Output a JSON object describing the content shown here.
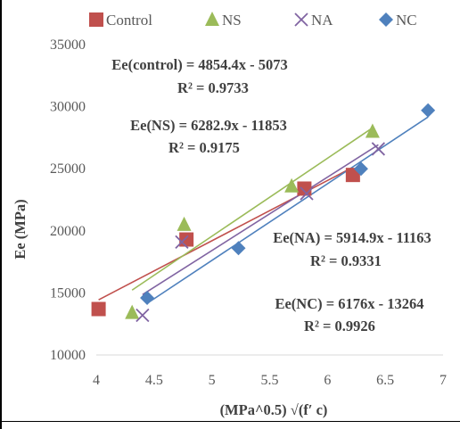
{
  "chart_data": {
    "type": "scatter",
    "xlabel": "(MPa^0.5) √(f′ c)",
    "ylabel": "Ee (MPa)",
    "xlim": [
      4,
      7
    ],
    "ylim": [
      10000,
      35000
    ],
    "x_ticks": [
      "4",
      "4.5",
      "5",
      "5.5",
      "6",
      "6.5",
      "7"
    ],
    "y_ticks": [
      "10000",
      "15000",
      "20000",
      "25000",
      "30000",
      "35000"
    ],
    "grid": false,
    "legend_position": "top",
    "series": [
      {
        "name": "Control",
        "color": "#c0504d",
        "marker": "square",
        "points": [
          [
            4.02,
            13700
          ],
          [
            4.78,
            19300
          ],
          [
            5.8,
            23400
          ],
          [
            6.22,
            24500
          ]
        ],
        "trendline": {
          "slope": 4854.4,
          "intercept": -5073,
          "x_range": [
            4.02,
            6.22
          ]
        },
        "equation": "Ee(control) = 4854.4x - 5073",
        "r2": "R² = 0.9733"
      },
      {
        "name": "NS",
        "color": "#9bbb59",
        "marker": "triangle",
        "points": [
          [
            4.31,
            13400
          ],
          [
            4.76,
            20500
          ],
          [
            5.69,
            23600
          ],
          [
            6.39,
            28000
          ]
        ],
        "trendline": {
          "slope": 6282.9,
          "intercept": -11853,
          "x_range": [
            4.31,
            6.39
          ]
        },
        "equation": "Ee(NS) = 6282.9x - 11853",
        "r2": "R² = 0.9175"
      },
      {
        "name": "NA",
        "color": "#8064a2",
        "marker": "x",
        "points": [
          [
            4.4,
            13200
          ],
          [
            4.74,
            19100
          ],
          [
            5.82,
            23000
          ],
          [
            6.44,
            26600
          ]
        ],
        "trendline": {
          "slope": 5914.9,
          "intercept": -11163,
          "x_range": [
            4.4,
            6.44
          ]
        },
        "equation": "Ee(NA) = 5914.9x - 11163",
        "r2": "R² = 0.9331"
      },
      {
        "name": "NC",
        "color": "#4f81bd",
        "marker": "diamond",
        "points": [
          [
            4.44,
            14600
          ],
          [
            5.23,
            18600
          ],
          [
            6.29,
            25000
          ],
          [
            6.87,
            29700
          ]
        ],
        "trendline": {
          "slope": 6176,
          "intercept": -13264,
          "x_range": [
            4.44,
            6.87
          ]
        },
        "equation": "Ee(NC) = 6176x - 13264",
        "r2": "R² = 0.9926"
      }
    ]
  }
}
